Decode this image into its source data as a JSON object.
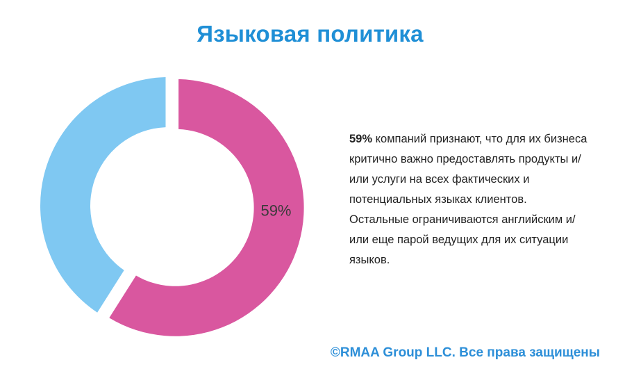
{
  "title": "Языковая политика",
  "description": {
    "highlight": "59%",
    "text": " компаний признают, что для их бизнеса критично важно предоставлять продукты и/или услуги на всех фактических и потенциальных языках клиентов. Остальные ограничиваются английским и/или еще парой ведущих для их ситуации языков."
  },
  "copyright": "©RMAA Group LLC. Все права защищены",
  "colors": {
    "title": "#1f8fd6",
    "pink": "#d9579f",
    "light_blue": "#7fc8f2",
    "copyright": "#2d8fd8"
  },
  "chart_data": {
    "type": "pie",
    "donut": true,
    "slices": [
      {
        "value": 59,
        "label": "59%",
        "color": "#d9579f",
        "exploded": true
      },
      {
        "value": 41,
        "label": "",
        "color": "#7fc8f2",
        "exploded": false
      }
    ]
  }
}
